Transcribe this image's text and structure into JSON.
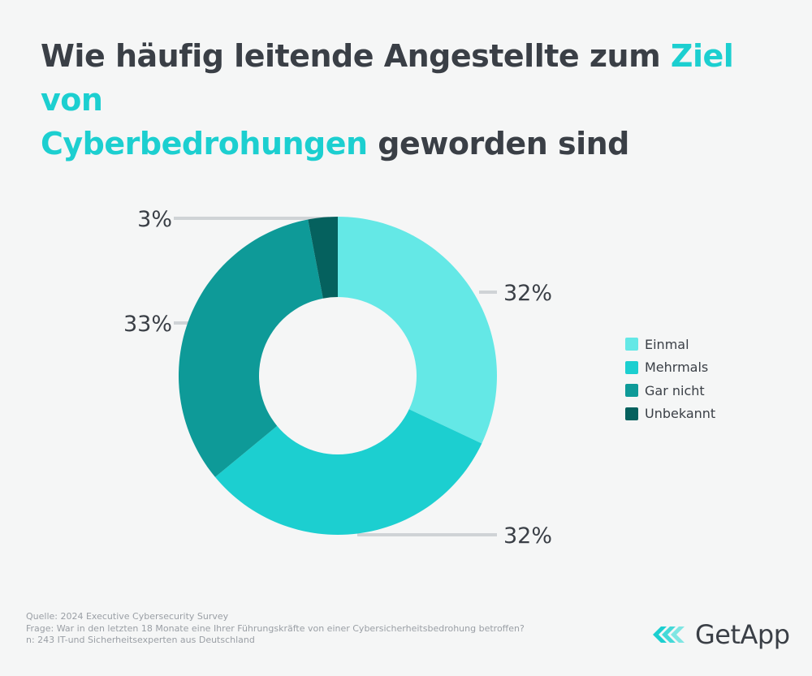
{
  "title": {
    "part1": "Wie häufig leitende Angestellte zum ",
    "highlight1": "Ziel von",
    "highlight2": "Cyberbedrohungen",
    "part2": " geworden sind"
  },
  "colors": {
    "accent": "#1ccfd0",
    "text": "#3a3f46",
    "leader": "#cfd3d6",
    "background": "#f5f6f6"
  },
  "chart_data": {
    "type": "pie",
    "style": "donut",
    "categories": [
      "Einmal",
      "Mehrmals",
      "Gar nicht",
      "Unbekannt"
    ],
    "values": [
      32,
      32,
      33,
      3
    ],
    "labels": [
      "32%",
      "32%",
      "33%",
      "3%"
    ],
    "colors": [
      "#64e8e6",
      "#1ccfd0",
      "#0e9a98",
      "#05615e"
    ],
    "legend_position": "right"
  },
  "source": {
    "line1": "Quelle: 2024 Executive Cybersecurity Survey",
    "line2": "Frage: War in den letzten 18 Monate eine Ihrer Führungskräfte von einer Cybersicherheitsbedrohung betroffen?",
    "line3": "n: 243 IT-und Sicherheitsexperten aus Deutschland"
  },
  "logo": {
    "text": "GetApp",
    "icon": "getapp-chevron-logo-icon"
  }
}
